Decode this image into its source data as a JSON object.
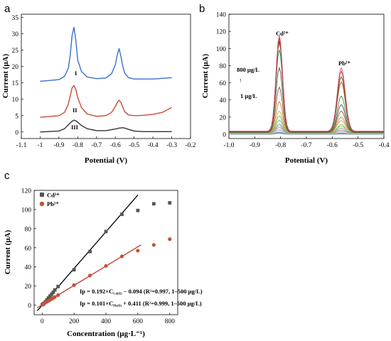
{
  "panel_letters": {
    "a": "a",
    "b": "b",
    "c": "c"
  },
  "chart_data": [
    {
      "panel": "a",
      "type": "line",
      "xlabel": "Potential (V)",
      "ylabel": "Current (μA)",
      "xlim": [
        -1.1,
        -0.2
      ],
      "ylim": [
        -2,
        36
      ],
      "xticks": [
        -1.1,
        -1.0,
        -0.9,
        -0.8,
        -0.7,
        -0.6,
        -0.5,
        -0.4,
        -0.3,
        -0.2
      ],
      "xtick_labels": [
        "-1.1",
        "-1",
        "-0.9",
        "-0.8",
        "-0.7",
        "-0.6",
        "-0.5",
        "-0.4",
        "-0.3",
        "-0.2"
      ],
      "yticks": [
        0,
        5,
        10,
        15,
        20,
        25,
        30,
        35
      ],
      "ytick_labels": [
        "0",
        "5",
        "10",
        "15",
        "20",
        "25",
        "30",
        "35"
      ],
      "series": [
        {
          "name": "I",
          "color": "#3a6fd0",
          "x": [
            -1.0,
            -0.9,
            -0.87,
            -0.85,
            -0.84,
            -0.83,
            -0.82,
            -0.81,
            -0.8,
            -0.78,
            -0.75,
            -0.7,
            -0.65,
            -0.62,
            -0.6,
            -0.59,
            -0.58,
            -0.57,
            -0.56,
            -0.55,
            -0.53,
            -0.5,
            -0.45,
            -0.4,
            -0.35,
            -0.3
          ],
          "values": [
            15.5,
            16.0,
            17.0,
            19.5,
            23.5,
            29.5,
            32.0,
            28.0,
            22.0,
            18.5,
            16.8,
            16.3,
            16.5,
            17.8,
            20.5,
            23.5,
            25.5,
            23.0,
            20.0,
            18.0,
            16.6,
            16.2,
            16.2,
            16.2,
            16.4,
            16.6
          ]
        },
        {
          "name": "II",
          "color": "#c94a36",
          "x": [
            -1.0,
            -0.9,
            -0.87,
            -0.85,
            -0.84,
            -0.83,
            -0.82,
            -0.81,
            -0.8,
            -0.78,
            -0.75,
            -0.7,
            -0.65,
            -0.62,
            -0.6,
            -0.59,
            -0.58,
            -0.57,
            -0.56,
            -0.55,
            -0.53,
            -0.5,
            -0.45,
            -0.4,
            -0.35,
            -0.3
          ],
          "values": [
            4.5,
            5.0,
            6.0,
            8.5,
            11.0,
            13.5,
            14.2,
            13.0,
            10.5,
            7.5,
            5.5,
            4.8,
            5.0,
            6.0,
            7.8,
            9.0,
            9.7,
            9.0,
            7.5,
            6.2,
            5.2,
            5.0,
            5.1,
            5.4,
            6.0,
            7.5
          ]
        },
        {
          "name": "III",
          "color": "#333333",
          "x": [
            -1.0,
            -0.9,
            -0.87,
            -0.85,
            -0.83,
            -0.82,
            -0.81,
            -0.8,
            -0.78,
            -0.75,
            -0.7,
            -0.65,
            -0.6,
            -0.58,
            -0.56,
            -0.55,
            -0.53,
            -0.5,
            -0.45,
            -0.4,
            -0.35,
            -0.3
          ],
          "values": [
            0.0,
            0.3,
            1.0,
            2.2,
            3.3,
            3.6,
            3.4,
            3.0,
            2.0,
            1.0,
            0.4,
            0.4,
            0.9,
            1.2,
            1.3,
            1.2,
            0.8,
            0.3,
            0.1,
            0.1,
            0.1,
            0.1
          ]
        }
      ]
    },
    {
      "panel": "b",
      "type": "line",
      "xlabel": "Potential (V)",
      "ylabel": "Current (μA)",
      "xlim": [
        -1.0,
        -0.4
      ],
      "ylim": [
        -5,
        140
      ],
      "xticks": [
        -1.0,
        -0.9,
        -0.8,
        -0.7,
        -0.6,
        -0.5,
        -0.4
      ],
      "xtick_labels": [
        "-1.0",
        "-0.9",
        "-0.8",
        "-0.7",
        "-0.6",
        "-0.5",
        "-0.4"
      ],
      "yticks": [
        0,
        20,
        40,
        60,
        80,
        100,
        120,
        140
      ],
      "ytick_labels": [
        "0",
        "20",
        "40",
        "60",
        "80",
        "100",
        "120",
        "140"
      ],
      "annotations": {
        "cd": "Cd²⁺",
        "pb": "Pb²⁺",
        "high": "800 μg/L",
        "low": "1 μg/L",
        "arrow": "↑"
      },
      "series_colors": [
        "#3d5a80",
        "#6a8caf",
        "#9ab7d3",
        "#b3c7e6",
        "#d98c8c",
        "#e3a89b",
        "#5fa6a0",
        "#6fb07a",
        "#8fbf5a",
        "#c9b24a",
        "#c0892b",
        "#a0522d",
        "#555555",
        "#2e8b57",
        "#8b6914",
        "#7a4a2a",
        "#c02828",
        "#d05a78"
      ],
      "cd_peaks": [
        1.5,
        2.5,
        4,
        5.5,
        7,
        9,
        11,
        15,
        20,
        25,
        36,
        53,
        75,
        96,
        104,
        106,
        109,
        112
      ],
      "pb_peaks": [
        0.5,
        1,
        1.5,
        2,
        3,
        4,
        6,
        8,
        10,
        14,
        18,
        25,
        32,
        42,
        58,
        64,
        70,
        74
      ],
      "baselines": [
        0,
        0,
        0.5,
        0.5,
        1,
        1,
        1,
        1.5,
        1.5,
        2,
        2,
        2,
        2.5,
        2.5,
        3,
        3,
        3.5,
        3.5
      ],
      "cd_center": -0.805,
      "pb_center": -0.565
    },
    {
      "panel": "c",
      "type": "scatter",
      "xlabel": "Concentration (μg·L⁻¹)",
      "ylabel": "Current (μA)",
      "xlim": [
        -50,
        850
      ],
      "ylim": [
        -10,
        120
      ],
      "xticks": [
        0,
        200,
        400,
        600,
        800
      ],
      "xtick_labels": [
        "0",
        "200",
        "400",
        "600",
        "800"
      ],
      "yticks": [
        0,
        20,
        40,
        60,
        80,
        100,
        120
      ],
      "ytick_labels": [
        "0",
        "20",
        "40",
        "60",
        "80",
        "100",
        "120"
      ],
      "legend_position": "top-left",
      "series": [
        {
          "name": "Cd²⁺",
          "marker": "square",
          "color": "#555555",
          "fit_color": "#000000",
          "x": [
            1,
            5,
            10,
            20,
            30,
            40,
            50,
            60,
            70,
            80,
            100,
            200,
            300,
            400,
            500,
            600,
            700,
            800
          ],
          "values": [
            0.5,
            1,
            1.8,
            3.5,
            5.5,
            7.5,
            9.5,
            11.5,
            13.5,
            16,
            19.5,
            37,
            56,
            77,
            95,
            99,
            106,
            107
          ],
          "fit": {
            "slope": 0.192,
            "intercept": -0.094,
            "x_range": [
              -30,
              600
            ]
          }
        },
        {
          "name": "Pb²⁺",
          "marker": "circle",
          "color": "#c0533a",
          "fit_color": "#c0392b",
          "x": [
            1,
            5,
            10,
            20,
            30,
            40,
            50,
            60,
            70,
            80,
            100,
            200,
            300,
            400,
            500,
            600,
            700,
            800
          ],
          "values": [
            0.5,
            1,
            1.3,
            2.5,
            3.5,
            4.5,
            5.5,
            6.5,
            7.5,
            8.5,
            10.5,
            21,
            31,
            41,
            51,
            57,
            63,
            69
          ],
          "fit": {
            "slope": 0.101,
            "intercept": 0.411,
            "x_range": [
              -30,
              620
            ]
          }
        }
      ],
      "equations": [
        "Ip = 0.192×C",
        "Cd(II)",
        " − 0.094 (R",
        "2",
        "=0.997, 1–500 μg/L)",
        "Ip = 0.101×C",
        "Pb(II)",
        " + 0.411 (R",
        "2",
        "=0.999, 1–500 μg/L)"
      ]
    }
  ]
}
